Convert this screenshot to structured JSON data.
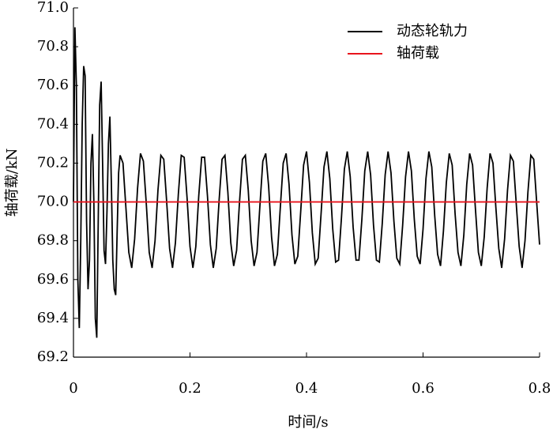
{
  "chart_data": {
    "type": "line",
    "xlabel": "时间/s",
    "ylabel": "轴荷载/kN",
    "xlim": [
      0,
      0.8
    ],
    "xticks": [
      0,
      0.2,
      0.4,
      0.6,
      0.8
    ],
    "ylim": [
      69.2,
      71.0
    ],
    "yticks": [
      69.2,
      69.4,
      69.6,
      69.8,
      {
        "value": 70,
        "label": "70.0"
      },
      70.2,
      70.4,
      70.6,
      70.8,
      {
        "value": 71,
        "label": "71.0"
      }
    ],
    "legend": "upper right",
    "x": [
      0,
      0.0025,
      0.005,
      0.0075,
      0.01,
      0.0125,
      0.015,
      0.0175,
      0.02,
      0.0225,
      0.025,
      0.0275,
      0.03,
      0.0325,
      0.035,
      0.0375,
      0.04,
      0.0425,
      0.045,
      0.0475,
      0.05,
      0.0525,
      0.055,
      0.0575,
      0.06,
      0.0625,
      0.065,
      0.0675,
      0.07,
      0.0725,
      0.075,
      0.0775,
      0.08,
      0.085,
      0.09,
      0.095,
      0.1,
      0.105,
      0.11,
      0.115,
      0.12,
      0.125,
      0.13,
      0.135,
      0.14,
      0.145,
      0.15,
      0.155,
      0.16,
      0.165,
      0.17,
      0.175,
      0.18,
      0.185,
      0.19,
      0.195,
      0.2,
      0.205,
      0.21,
      0.215,
      0.22,
      0.225,
      0.23,
      0.235,
      0.24,
      0.245,
      0.25,
      0.255,
      0.26,
      0.265,
      0.27,
      0.275,
      0.28,
      0.285,
      0.29,
      0.295,
      0.3,
      0.305,
      0.31,
      0.315,
      0.32,
      0.325,
      0.33,
      0.335,
      0.34,
      0.345,
      0.35,
      0.355,
      0.36,
      0.365,
      0.37,
      0.375,
      0.38,
      0.385,
      0.39,
      0.395,
      0.4,
      0.405,
      0.41,
      0.415,
      0.42,
      0.425,
      0.43,
      0.435,
      0.44,
      0.445,
      0.45,
      0.455,
      0.46,
      0.465,
      0.47,
      0.475,
      0.48,
      0.485,
      0.49,
      0.495,
      0.5,
      0.505,
      0.51,
      0.515,
      0.52,
      0.525,
      0.53,
      0.535,
      0.54,
      0.545,
      0.55,
      0.555,
      0.56,
      0.565,
      0.57,
      0.575,
      0.58,
      0.585,
      0.59,
      0.595,
      0.6,
      0.605,
      0.61,
      0.615,
      0.62,
      0.625,
      0.63,
      0.635,
      0.64,
      0.645,
      0.65,
      0.655,
      0.66,
      0.665,
      0.67,
      0.675,
      0.68,
      0.685,
      0.69,
      0.695,
      0.7,
      0.705,
      0.71,
      0.715,
      0.72,
      0.725,
      0.73,
      0.735,
      0.74,
      0.745,
      0.75,
      0.755,
      0.76,
      0.765,
      0.77,
      0.775,
      0.78,
      0.785,
      0.79,
      0.795,
      0.8
    ],
    "series": [
      {
        "name": "动态轮轨力",
        "color": "#000000",
        "values": [
          70.0,
          70.9,
          70.6,
          69.6,
          69.35,
          69.8,
          70.4,
          70.7,
          70.65,
          69.9,
          69.55,
          69.7,
          70.2,
          70.35,
          70.0,
          69.4,
          69.3,
          69.9,
          70.5,
          70.62,
          70.2,
          69.75,
          69.68,
          69.95,
          70.3,
          70.44,
          70.1,
          69.7,
          69.55,
          69.52,
          69.85,
          70.15,
          70.24,
          70.2,
          69.97,
          69.74,
          69.66,
          69.81,
          70.07,
          70.25,
          70.21,
          69.99,
          69.74,
          69.66,
          69.8,
          70.06,
          70.24,
          70.22,
          70.0,
          69.76,
          69.66,
          69.79,
          70.04,
          70.24,
          70.23,
          70.02,
          69.77,
          69.66,
          69.77,
          70.03,
          70.23,
          70.23,
          70.03,
          69.78,
          69.66,
          69.76,
          70.01,
          70.22,
          70.24,
          70.05,
          69.79,
          69.67,
          69.75,
          70.0,
          70.22,
          70.24,
          70.06,
          69.8,
          69.67,
          69.74,
          69.98,
          70.21,
          70.25,
          70.08,
          69.82,
          69.67,
          69.73,
          69.97,
          70.2,
          70.25,
          70.09,
          69.83,
          69.68,
          69.72,
          69.95,
          70.19,
          70.26,
          70.1,
          69.84,
          69.68,
          69.71,
          69.94,
          70.18,
          70.26,
          70.12,
          69.86,
          69.69,
          69.7,
          69.92,
          70.17,
          70.26,
          70.13,
          69.87,
          69.7,
          69.7,
          69.91,
          70.16,
          70.26,
          70.14,
          69.88,
          69.7,
          69.69,
          69.89,
          70.14,
          70.26,
          70.15,
          69.9,
          69.71,
          69.68,
          69.88,
          70.13,
          70.26,
          70.16,
          69.91,
          69.72,
          69.68,
          69.86,
          70.12,
          70.26,
          70.18,
          69.93,
          69.73,
          69.67,
          69.85,
          70.1,
          70.25,
          70.19,
          69.94,
          69.74,
          69.67,
          69.83,
          70.09,
          70.25,
          70.19,
          69.96,
          69.74,
          69.67,
          69.82,
          70.07,
          70.25,
          70.2,
          69.97,
          69.76,
          69.66,
          69.81,
          70.06,
          70.24,
          70.21,
          69.99,
          69.77,
          69.66,
          69.8,
          70.05,
          70.24,
          70.22,
          70.0,
          69.78
        ]
      },
      {
        "name": "轴荷载",
        "color": "#e8141c",
        "x": [
          0,
          0.8
        ],
        "values": [
          70,
          70
        ]
      }
    ]
  }
}
